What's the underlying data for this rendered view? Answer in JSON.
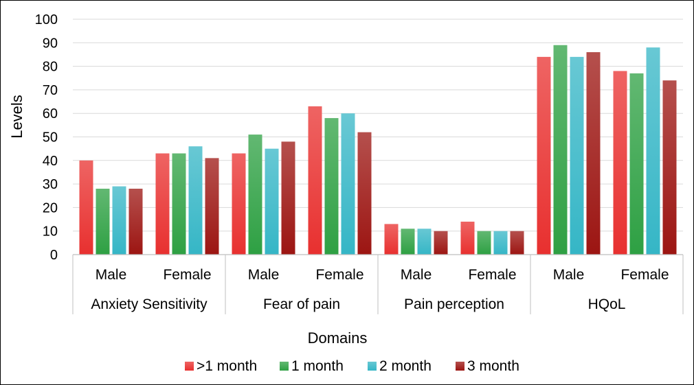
{
  "chart_data": {
    "type": "bar",
    "title": "",
    "xlabel": "Domains",
    "ylabel": "Levels",
    "ylim": [
      0,
      100
    ],
    "yticks": [
      0,
      10,
      20,
      30,
      40,
      50,
      60,
      70,
      80,
      90,
      100
    ],
    "groups": [
      "Anxiety Sensitivity",
      "Fear of pain",
      "Pain perception",
      "HQoL"
    ],
    "subcategories": [
      "Male",
      "Female"
    ],
    "categories": [
      "Anxiety Sensitivity - Male",
      "Anxiety Sensitivity - Female",
      "Fear of pain - Male",
      "Fear of pain - Female",
      "Pain perception - Male",
      "Pain perception - Female",
      "HQoL - Male",
      "HQoL - Female"
    ],
    "series": [
      {
        "name": ">1 month",
        "color": "#e8302f",
        "values": [
          40,
          43,
          43,
          63,
          13,
          14,
          84,
          78
        ]
      },
      {
        "name": "1 month",
        "color": "#2ea043",
        "values": [
          28,
          43,
          51,
          58,
          11,
          10,
          89,
          77
        ]
      },
      {
        "name": "2 month",
        "color": "#35b6c6",
        "values": [
          29,
          46,
          45,
          60,
          11,
          10,
          84,
          88
        ]
      },
      {
        "name": "3 month",
        "color": "#9c1512",
        "values": [
          28,
          41,
          48,
          52,
          10,
          10,
          86,
          74
        ]
      }
    ],
    "grid": true,
    "legend": "bottom"
  }
}
